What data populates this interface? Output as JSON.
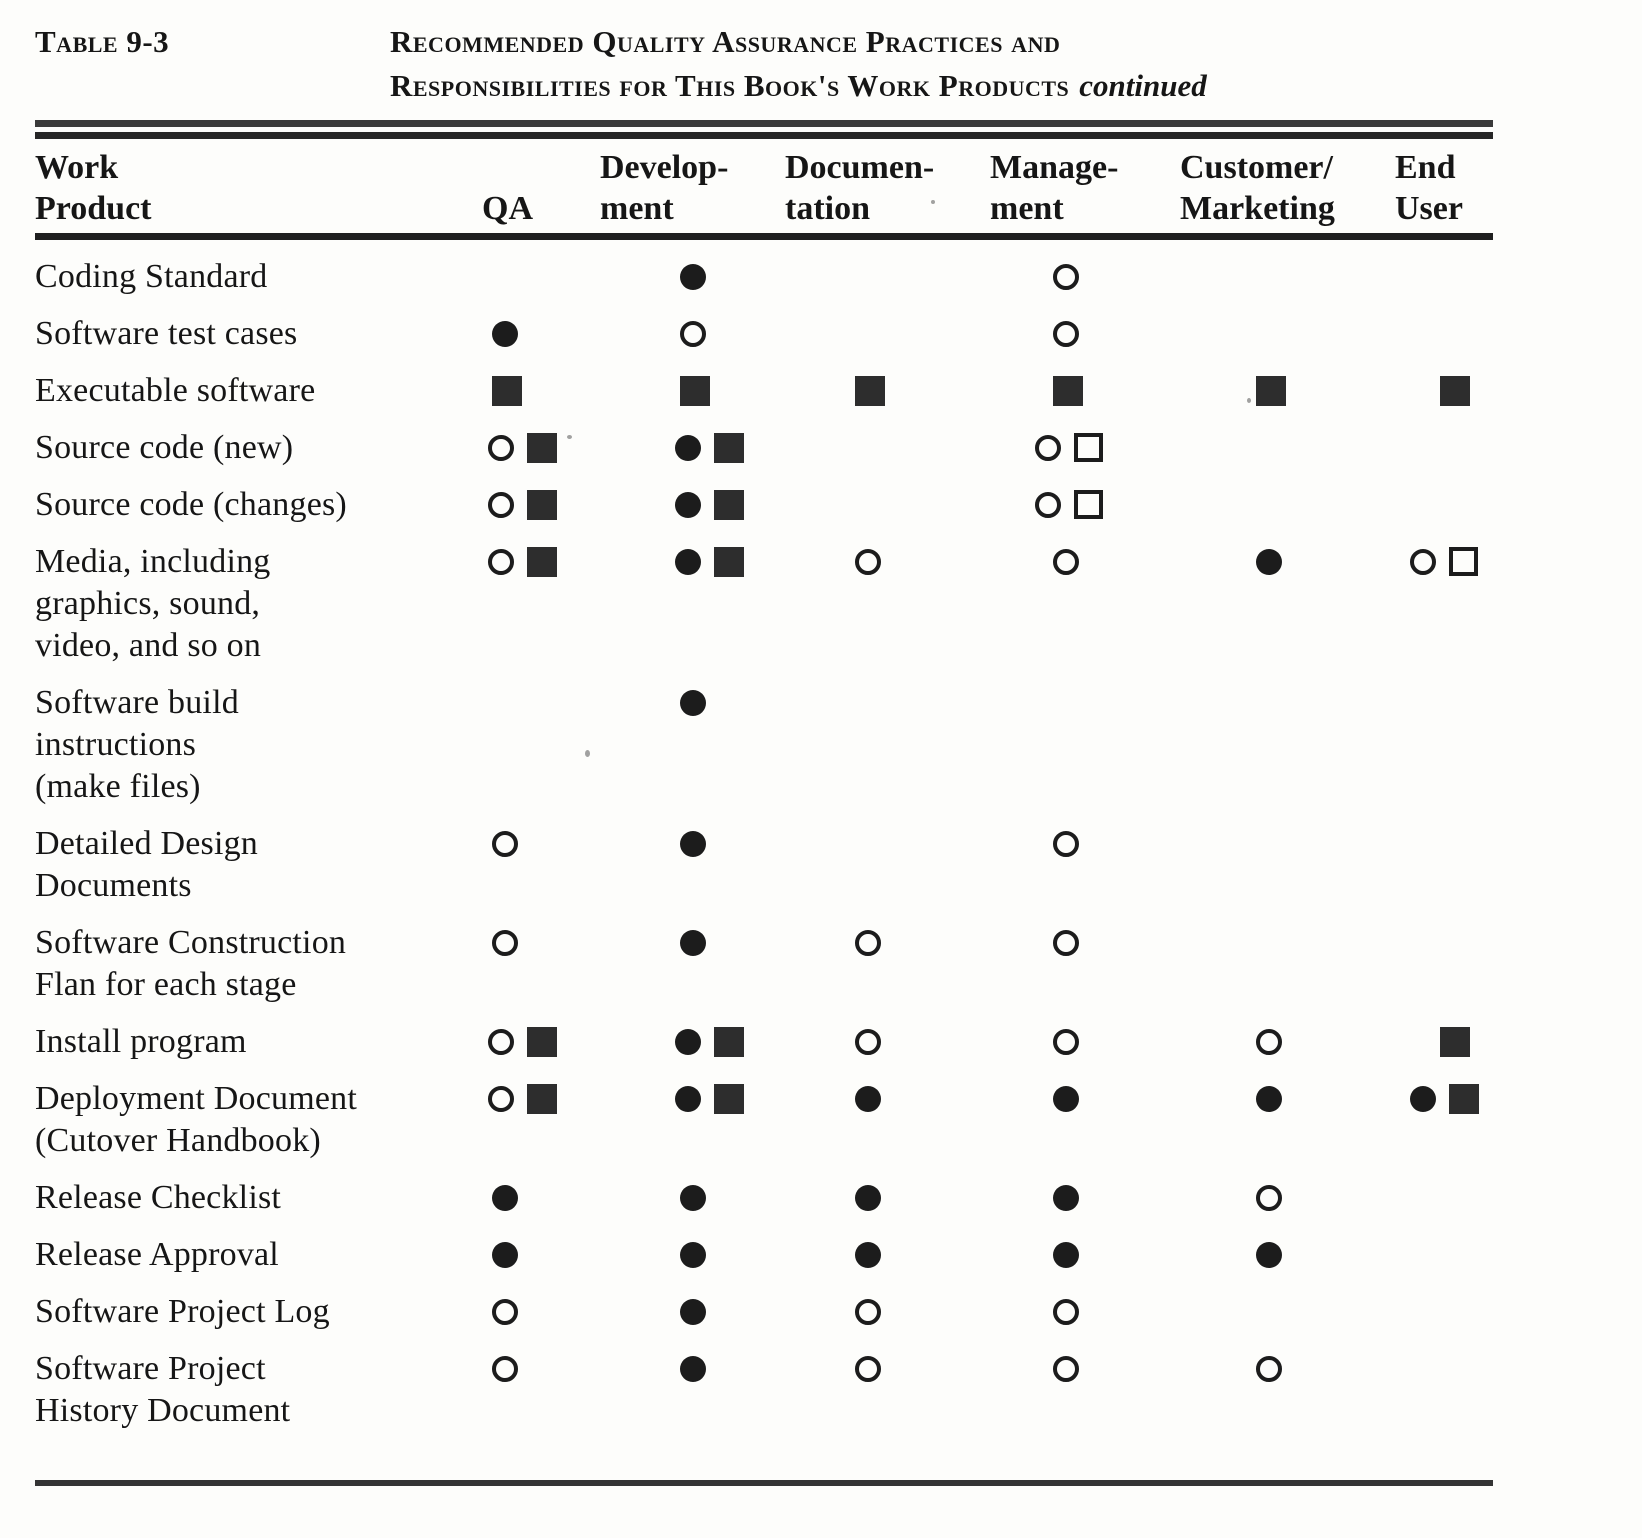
{
  "caption": {
    "table_label": "Table 9-3",
    "title_line1": "Recommended Quality Assurance Practices and",
    "title_line2": "Responsibilities for This Book's Work Products",
    "title_continued": "continued"
  },
  "symbols_legend": {
    "filled-circle": "●",
    "open-circle": "○",
    "filled-square": "■",
    "open-square": "□"
  },
  "table": {
    "columns": [
      {
        "id": "work-product",
        "lines": [
          "Work",
          "Product"
        ]
      },
      {
        "id": "qa",
        "lines": [
          "",
          "QA"
        ]
      },
      {
        "id": "development",
        "lines": [
          "Develop-",
          "ment"
        ]
      },
      {
        "id": "documentation",
        "lines": [
          "Documen-",
          "tation"
        ]
      },
      {
        "id": "management",
        "lines": [
          "Manage-",
          "ment"
        ]
      },
      {
        "id": "customer-marketing",
        "lines": [
          "Customer/",
          "Marketing"
        ]
      },
      {
        "id": "end-user",
        "lines": [
          "End",
          "User"
        ]
      }
    ],
    "rows": [
      {
        "product_lines": [
          "Coding Standard"
        ],
        "cells": [
          [],
          [
            "filled-circle"
          ],
          [],
          [
            "open-circle"
          ],
          [],
          []
        ]
      },
      {
        "product_lines": [
          "Software test cases"
        ],
        "cells": [
          [
            "filled-circle"
          ],
          [
            "open-circle"
          ],
          [],
          [
            "open-circle"
          ],
          [],
          []
        ]
      },
      {
        "product_lines": [
          "Executable software"
        ],
        "cells": [
          [
            "filled-square"
          ],
          [
            "filled-square"
          ],
          [
            "filled-square"
          ],
          [
            "filled-square"
          ],
          [
            "filled-square"
          ],
          [
            "filled-square"
          ]
        ]
      },
      {
        "product_lines": [
          "Source code (new)"
        ],
        "cells": [
          [
            "open-circle",
            "filled-square"
          ],
          [
            "filled-circle",
            "filled-square"
          ],
          [],
          [
            "open-circle",
            "open-square"
          ],
          [],
          []
        ]
      },
      {
        "product_lines": [
          "Source code (changes)"
        ],
        "cells": [
          [
            "open-circle",
            "filled-square"
          ],
          [
            "filled-circle",
            "filled-square"
          ],
          [],
          [
            "open-circle",
            "open-square"
          ],
          [],
          []
        ]
      },
      {
        "product_lines": [
          "Media, including",
          "graphics, sound,",
          "video, and so on"
        ],
        "cells": [
          [
            "open-circle",
            "filled-square"
          ],
          [
            "filled-circle",
            "filled-square"
          ],
          [
            "open-circle"
          ],
          [
            "open-circle"
          ],
          [
            "filled-circle"
          ],
          [
            "open-circle",
            "open-square"
          ]
        ]
      },
      {
        "product_lines": [
          "Software build",
          "instructions",
          "(make files)"
        ],
        "cells": [
          [],
          [
            "filled-circle"
          ],
          [],
          [],
          [],
          []
        ]
      },
      {
        "product_lines": [
          "Detailed Design",
          "Documents"
        ],
        "cells": [
          [
            "open-circle"
          ],
          [
            "filled-circle"
          ],
          [],
          [
            "open-circle"
          ],
          [],
          []
        ]
      },
      {
        "product_lines": [
          "Software Construction",
          "Flan for each stage"
        ],
        "cells": [
          [
            "open-circle"
          ],
          [
            "filled-circle"
          ],
          [
            "open-circle"
          ],
          [
            "open-circle"
          ],
          [],
          []
        ]
      },
      {
        "product_lines": [
          "Install program"
        ],
        "cells": [
          [
            "open-circle",
            "filled-square"
          ],
          [
            "filled-circle",
            "filled-square"
          ],
          [
            "open-circle"
          ],
          [
            "open-circle"
          ],
          [
            "open-circle"
          ],
          [
            "filled-square"
          ]
        ]
      },
      {
        "product_lines": [
          "Deployment Document",
          "(Cutover Handbook)"
        ],
        "cells": [
          [
            "open-circle",
            "filled-square"
          ],
          [
            "filled-circle",
            "filled-square"
          ],
          [
            "filled-circle"
          ],
          [
            "filled-circle"
          ],
          [
            "filled-circle"
          ],
          [
            "filled-circle",
            "filled-square"
          ]
        ]
      },
      {
        "product_lines": [
          "Release Checklist"
        ],
        "cells": [
          [
            "filled-circle"
          ],
          [
            "filled-circle"
          ],
          [
            "filled-circle"
          ],
          [
            "filled-circle"
          ],
          [
            "open-circle"
          ],
          []
        ]
      },
      {
        "product_lines": [
          "Release Approval"
        ],
        "cells": [
          [
            "filled-circle"
          ],
          [
            "filled-circle"
          ],
          [
            "filled-circle"
          ],
          [
            "filled-circle"
          ],
          [
            "filled-circle"
          ],
          []
        ]
      },
      {
        "product_lines": [
          "Software Project Log"
        ],
        "cells": [
          [
            "open-circle"
          ],
          [
            "filled-circle"
          ],
          [
            "open-circle"
          ],
          [
            "open-circle"
          ],
          [],
          []
        ]
      },
      {
        "product_lines": [
          "Software Project",
          "History Document"
        ],
        "cells": [
          [
            "open-circle"
          ],
          [
            "filled-circle"
          ],
          [
            "open-circle"
          ],
          [
            "open-circle"
          ],
          [
            "open-circle"
          ],
          []
        ]
      }
    ]
  }
}
